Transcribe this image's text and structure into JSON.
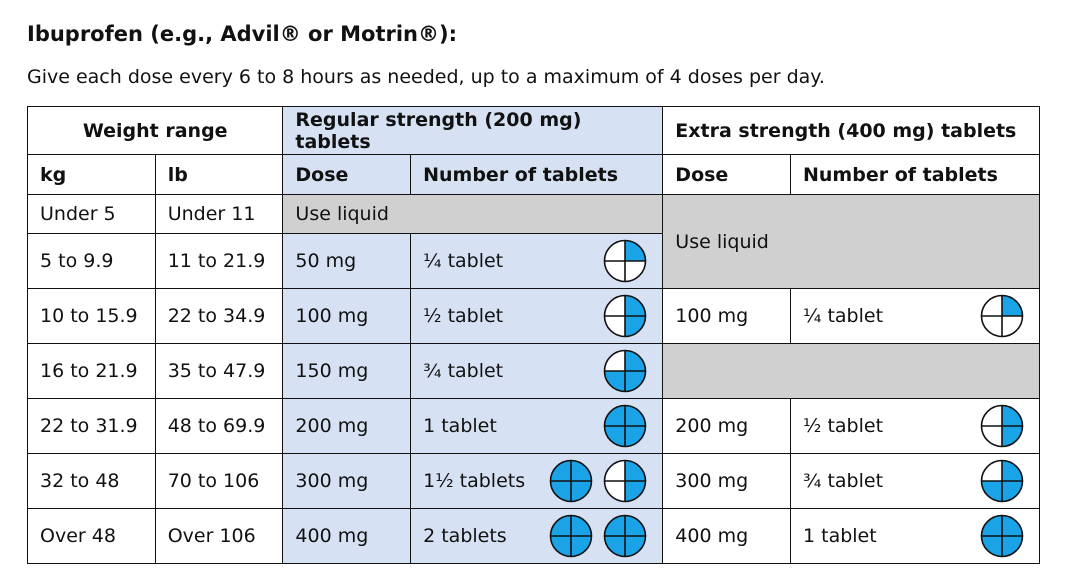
{
  "title": "Ibuprofen (e.g., Advil® or Motrin®):",
  "subtitle": "Give each dose every 6 to 8 hours as needed, up to a maximum of 4 doses per day.",
  "colors": {
    "tablet_blue": "#1aa3e6",
    "regular_bg": "#d6e2f3",
    "na_gray": "#d0d0d0"
  },
  "headers": {
    "weight_range": "Weight range",
    "regular": "Regular strength (200 mg) tablets",
    "extra": "Extra strength (400 mg) tablets",
    "kg": "kg",
    "lb": "lb",
    "dose": "Dose",
    "number_of_tablets": "Number of tablets"
  },
  "rows": [
    {
      "kg": "Under 5",
      "lb": "Under 11",
      "regular_liquid": "Use liquid",
      "extra_liquid": "Use liquid"
    },
    {
      "kg": "5 to 9.9",
      "lb": "11 to 21.9",
      "r_dose": "50 mg",
      "r_tabs": "¼ tablet",
      "r_icons": [
        0.25
      ]
    },
    {
      "kg": "10 to 15.9",
      "lb": "22 to 34.9",
      "r_dose": "100 mg",
      "r_tabs": "½ tablet",
      "r_icons": [
        0.5
      ],
      "e_dose": "100 mg",
      "e_tabs": "¼ tablet",
      "e_icons": [
        0.25
      ]
    },
    {
      "kg": "16 to 21.9",
      "lb": "35 to 47.9",
      "r_dose": "150 mg",
      "r_tabs": "¾ tablet",
      "r_icons": [
        0.75
      ]
    },
    {
      "kg": "22 to 31.9",
      "lb": "48 to 69.9",
      "r_dose": "200 mg",
      "r_tabs": "1 tablet",
      "r_icons": [
        1
      ],
      "e_dose": "200 mg",
      "e_tabs": "½ tablet",
      "e_icons": [
        0.5
      ]
    },
    {
      "kg": "32 to 48",
      "lb": "70 to 106",
      "r_dose": "300 mg",
      "r_tabs": "1½ tablets",
      "r_icons": [
        1,
        0.5
      ],
      "e_dose": "300 mg",
      "e_tabs": "¾ tablet",
      "e_icons": [
        0.75
      ]
    },
    {
      "kg": "Over 48",
      "lb": "Over 106",
      "r_dose": "400 mg",
      "r_tabs": "2 tablets",
      "r_icons": [
        1,
        1
      ],
      "e_dose": "400 mg",
      "e_tabs": "1 tablet",
      "e_icons": [
        1
      ]
    }
  ]
}
